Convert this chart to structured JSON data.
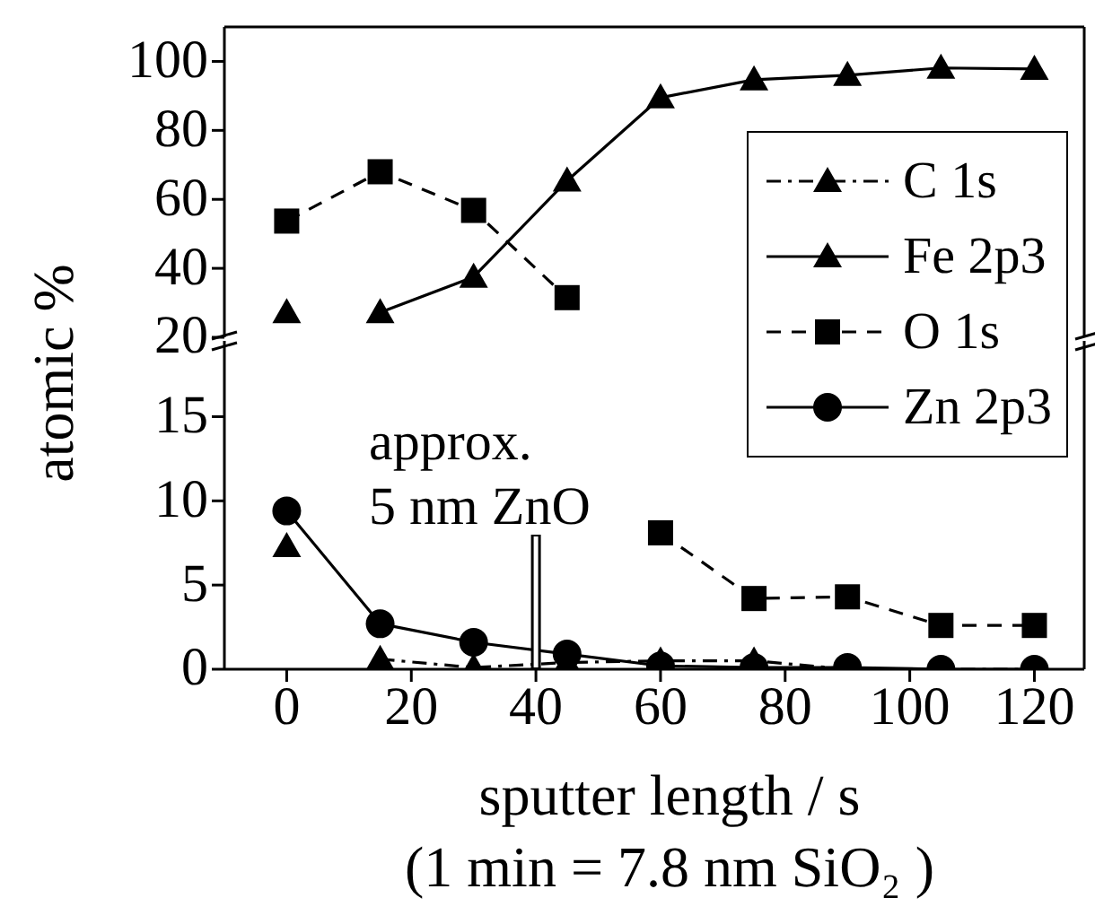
{
  "chart_data": [
    {
      "type": "line",
      "x": [
        0,
        15,
        30,
        45,
        60,
        75,
        90,
        105,
        120
      ],
      "xlim": [
        -10,
        128
      ],
      "xticks": [
        0,
        20,
        40,
        60,
        80,
        100,
        120
      ],
      "ylim": [
        20,
        110
      ],
      "yticks": [
        20,
        40,
        60,
        80,
        100
      ],
      "tick_labels": "y",
      "legend": "right",
      "series": [
        {
          "name": "C 1s",
          "color": "#000000",
          "marker": "triangle",
          "line_style": "dashdot",
          "values": [
            27.2,
            null,
            null,
            null,
            null,
            null,
            null,
            null,
            null
          ]
        },
        {
          "name": "Fe 2p3",
          "color": "#000000",
          "marker": "triangle",
          "line_style": "solid",
          "values": [
            null,
            27.2,
            37.5,
            65.4,
            89.5,
            94.7,
            96.0,
            98.1,
            97.8
          ]
        },
        {
          "name": "O 1s",
          "color": "#000000",
          "marker": "square",
          "line_style": "dashed",
          "values": [
            53.7,
            68,
            56.8,
            31.5,
            null,
            null,
            null,
            null,
            null
          ]
        },
        {
          "name": "Zn 2p3",
          "color": "#000000",
          "marker": "circle",
          "line_style": "solid",
          "values": [
            null,
            null,
            null,
            null,
            null,
            null,
            null,
            null,
            null
          ]
        }
      ]
    },
    {
      "type": "line",
      "x": [
        0,
        15,
        30,
        45,
        60,
        75,
        90,
        105,
        120
      ],
      "xlim": [
        -10,
        128
      ],
      "xticks": [
        0,
        20,
        40,
        60,
        80,
        100,
        120
      ],
      "ylim": [
        0,
        19.5
      ],
      "yticks": [
        0,
        5,
        10,
        15
      ],
      "ylabel": "atomic %",
      "xlabel": "sputter length / s\n(1 min = 7.8 nm SiO₂ )",
      "ref_lines": [
        {
          "axis": "x",
          "value": 40,
          "label": "approx.\n5 nm ZnO",
          "color": "#000000"
        }
      ],
      "series": [
        {
          "color": "#000000",
          "marker": "triangle",
          "line_style": "dashdot",
          "values": [
            null,
            0.6,
            0.1,
            0.4,
            0.5,
            0.5,
            0,
            0,
            0
          ]
        },
        {
          "color": "#000000",
          "marker": "triangle",
          "line_style": "solid",
          "values": [
            7.3,
            null,
            null,
            null,
            null,
            null,
            null,
            null,
            null
          ]
        },
        {
          "color": "#000000",
          "marker": "square",
          "line_style": "dashed",
          "values": [
            null,
            null,
            null,
            null,
            8.1,
            4.2,
            4.3,
            2.6,
            2.6
          ]
        },
        {
          "color": "#000000",
          "marker": "circle",
          "line_style": "solid",
          "values": [
            9.4,
            2.7,
            1.6,
            0.9,
            0.2,
            0.1,
            0.1,
            0,
            0
          ]
        }
      ]
    }
  ]
}
